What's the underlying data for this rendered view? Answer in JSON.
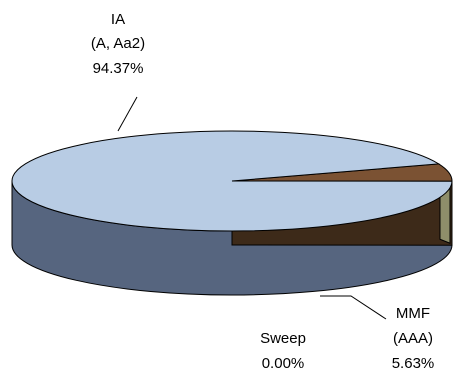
{
  "chart_data": {
    "type": "pie",
    "style": "3d",
    "title": "",
    "slices": [
      {
        "label": "IA",
        "sublabel": "(A, Aa2)",
        "pct_text": "94.37%",
        "value": 94.37,
        "color": "#b8cce4",
        "side_color": "#56657f"
      },
      {
        "label": "MMF",
        "sublabel": "(AAA)",
        "pct_text": "5.63%",
        "value": 5.63,
        "color": "#7b5233",
        "side_color": "#3d2a19"
      },
      {
        "label": "Sweep",
        "sublabel": "",
        "pct_text": "0.00%",
        "value": 0.0,
        "color": "#8e8e6a",
        "side_color": "#8e8e6a"
      }
    ],
    "legend": "none"
  }
}
